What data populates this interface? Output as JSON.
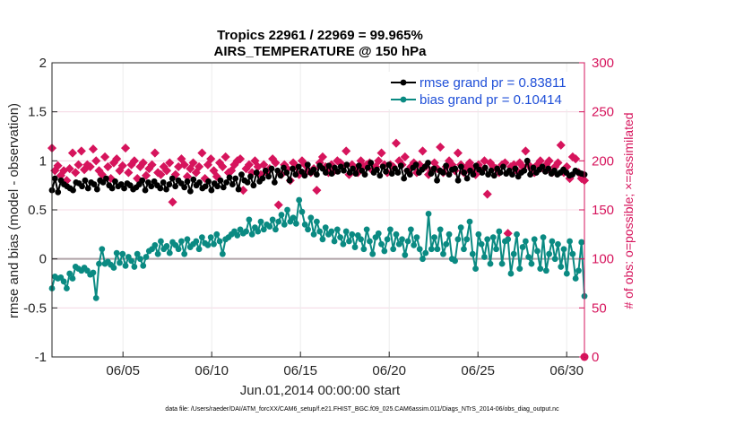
{
  "chart_data": {
    "type": "line",
    "title": "Tropics 22961 / 22969 = 99.965%",
    "subtitle": "AIRS_TEMPERATURE @ 150 hPa",
    "xlabel": "Jun.01,2014 00:00:00 start",
    "ylabel": "rmse and bias (model - observation)",
    "ylabel_right": "# of obs: o=possible; ×=assimilated",
    "xlim": [
      1,
      31
    ],
    "ylim": [
      -1,
      2
    ],
    "ylim_right": [
      0,
      300
    ],
    "x_ticks": [
      5,
      10,
      15,
      20,
      25,
      30
    ],
    "x_tick_labels": [
      "06/05",
      "06/10",
      "06/15",
      "06/20",
      "06/25",
      "06/30"
    ],
    "y_ticks": [
      -1,
      -0.5,
      0,
      0.5,
      1,
      1.5,
      2
    ],
    "y_tick_labels": [
      "-1",
      "-0.5",
      "0",
      "0.5",
      "1",
      "1.5",
      "2"
    ],
    "y_ticks_right": [
      0,
      50,
      100,
      150,
      200,
      250,
      300
    ],
    "y_tick_labels_right": [
      "0",
      "50",
      "100",
      "150",
      "200",
      "250",
      "300"
    ],
    "legend_position": "top-right",
    "footnote": "data file: /Users/raeder/DAI/ATM_forcXX/CAM6_setup/f.e21.FHIST_BGC.f09_025.CAM6assim.011/Diags_NTrS_2014-06/obs_diag_output.nc",
    "series": [
      {
        "name": "rmse grand pr = 0.83811",
        "color": "#000000",
        "axis": "left",
        "marker": "circle",
        "values": [
          0.7,
          0.82,
          0.68,
          0.8,
          0.76,
          0.74,
          0.72,
          0.7,
          0.78,
          0.77,
          0.74,
          0.8,
          0.72,
          0.78,
          0.76,
          0.71,
          0.8,
          0.78,
          0.82,
          0.75,
          0.72,
          0.79,
          0.74,
          0.76,
          0.72,
          0.77,
          0.75,
          0.71,
          0.73,
          0.76,
          0.8,
          0.7,
          0.78,
          0.74,
          0.79,
          0.75,
          0.72,
          0.78,
          0.71,
          0.76,
          0.82,
          0.74,
          0.8,
          0.77,
          0.73,
          0.79,
          0.69,
          0.81,
          0.75,
          0.78,
          0.72,
          0.74,
          0.79,
          0.7,
          0.77,
          0.74,
          0.8,
          0.73,
          0.78,
          0.83,
          0.76,
          0.82,
          0.71,
          0.86,
          0.8,
          0.78,
          0.84,
          0.75,
          0.88,
          0.79,
          0.82,
          0.9,
          0.84,
          0.92,
          0.78,
          0.9,
          0.85,
          0.93,
          0.88,
          0.8,
          0.92,
          0.86,
          0.94,
          0.89,
          0.85,
          0.96,
          0.88,
          0.91,
          0.86,
          0.95,
          0.92,
          0.88,
          0.95,
          0.87,
          0.93,
          0.89,
          0.94,
          0.9,
          0.96,
          0.88,
          0.92,
          0.87,
          0.95,
          0.9,
          0.86,
          0.93,
          0.98,
          0.88,
          0.91,
          0.85,
          0.94,
          0.89,
          0.96,
          0.87,
          0.92,
          0.88,
          0.95,
          0.82,
          0.9,
          0.86,
          0.93,
          0.96,
          0.88,
          0.91,
          0.94,
          0.98,
          0.87,
          0.92,
          0.8,
          0.9,
          0.88,
          0.95,
          0.86,
          0.91,
          0.92,
          0.8,
          0.94,
          0.88,
          0.82,
          0.9,
          0.86,
          0.95,
          0.91,
          0.88,
          0.93,
          0.86,
          0.9,
          0.85,
          0.92,
          0.88,
          0.94,
          0.87,
          0.9,
          0.86,
          0.92,
          0.84,
          0.88,
          0.9,
          1.0,
          0.86,
          0.93,
          0.88,
          0.91,
          0.94,
          0.89,
          0.92,
          0.87,
          0.9,
          0.86,
          0.88,
          0.91,
          0.88,
          0.85,
          0.86,
          0.9,
          0.88,
          0.87,
          0.86
        ]
      },
      {
        "name": "bias grand pr = 0.10414",
        "color": "#0a8a82",
        "axis": "left",
        "marker": "circle",
        "values": [
          -0.3,
          -0.18,
          -0.2,
          -0.19,
          -0.23,
          -0.3,
          -0.15,
          -0.2,
          -0.08,
          -0.1,
          -0.12,
          -0.09,
          -0.12,
          -0.16,
          -0.14,
          -0.4,
          -0.05,
          0.1,
          -0.05,
          -0.03,
          -0.06,
          -0.09,
          0.06,
          -0.04,
          0.05,
          -0.07,
          0.02,
          -0.02,
          -0.08,
          0.05,
          0.0,
          -0.07,
          0.02,
          0.08,
          0.1,
          0.14,
          0.05,
          0.18,
          0.1,
          0.13,
          0.06,
          0.17,
          0.14,
          0.1,
          0.18,
          0.05,
          0.2,
          0.12,
          0.15,
          0.18,
          0.1,
          0.22,
          0.16,
          0.14,
          0.22,
          0.15,
          0.25,
          0.18,
          0.05,
          0.2,
          0.22,
          0.25,
          0.28,
          0.24,
          0.3,
          0.26,
          0.28,
          0.4,
          0.25,
          0.32,
          0.28,
          0.38,
          0.3,
          0.35,
          0.33,
          0.4,
          0.3,
          0.38,
          0.45,
          0.35,
          0.5,
          0.38,
          0.42,
          0.36,
          0.6,
          0.48,
          0.35,
          0.3,
          0.42,
          0.25,
          0.38,
          0.28,
          0.2,
          0.32,
          0.25,
          0.28,
          0.18,
          0.3,
          0.22,
          0.15,
          0.28,
          0.18,
          0.25,
          0.12,
          0.24,
          0.2,
          0.1,
          0.3,
          0.18,
          0.05,
          0.22,
          0.26,
          0.15,
          0.08,
          0.2,
          0.3,
          0.1,
          0.25,
          0.15,
          0.2,
          0.04,
          0.18,
          0.3,
          0.14,
          0.22,
          0.1,
          0.0,
          0.06,
          0.46,
          0.1,
          0.22,
          0.1,
          0.3,
          0.05,
          0.15,
          0.25,
          0.0,
          -0.02,
          0.2,
          0.32,
          0.1,
          0.2,
          0.38,
          0.05,
          -0.1,
          0.25,
          0.15,
          0.02,
          0.2,
          -0.05,
          0.22,
          0.1,
          0.28,
          -0.05,
          0.18,
          0.2,
          -0.15,
          0.05,
          0.25,
          -0.1,
          0.12,
          0.18,
          0.02,
          -0.05,
          0.2,
          0.08,
          -0.1,
          0.22,
          -0.12,
          0.05,
          0.18,
          0.0,
          0.15,
          -0.08,
          0.1,
          -0.15,
          0.18,
          0.05,
          -0.2,
          -0.12,
          0.17,
          -0.38
        ]
      }
    ],
    "obs_counts": {
      "color": "#d6145c",
      "axis": "right",
      "possible_marker": "circle",
      "assimilated_marker": "cross",
      "values": [
        213,
        190,
        195,
        185,
        190,
        180,
        192,
        208,
        188,
        196,
        210,
        191,
        196,
        194,
        212,
        200,
        190,
        186,
        204,
        194,
        182,
        198,
        202,
        190,
        195,
        213,
        188,
        196,
        200,
        182,
        194,
        198,
        185,
        192,
        196,
        208,
        188,
        186,
        194,
        190,
        198,
        158,
        186,
        194,
        202,
        196,
        184,
        192,
        198,
        188,
        194,
        208,
        182,
        196,
        202,
        190,
        184,
        198,
        194,
        204,
        188,
        190,
        196,
        200,
        202,
        170,
        192,
        196,
        188,
        200,
        194,
        186,
        196,
        188,
        192,
        202,
        198,
        155,
        186,
        196,
        192,
        180,
        198,
        194,
        186,
        200,
        196,
        190,
        188,
        192,
        170,
        198,
        204,
        194,
        188,
        196,
        190,
        200,
        198,
        194,
        210,
        186,
        196,
        192,
        188,
        200,
        194,
        196,
        198,
        190,
        194,
        200,
        208,
        196,
        188,
        196,
        194,
        218,
        200,
        196,
        204,
        190,
        194,
        198,
        188,
        196,
        210,
        194,
        186,
        190,
        198,
        192,
        214,
        188,
        194,
        200,
        196,
        190,
        208,
        196,
        188,
        194,
        198,
        192,
        186,
        196,
        190,
        200,
        166,
        198,
        194,
        192,
        188,
        196,
        198,
        126,
        194,
        196,
        190,
        198,
        194,
        210,
        196,
        192,
        188,
        196,
        200,
        192,
        196,
        200,
        188,
        194,
        198,
        216,
        188,
        194,
        182,
        204,
        202,
        188,
        182,
        180
      ]
    }
  }
}
